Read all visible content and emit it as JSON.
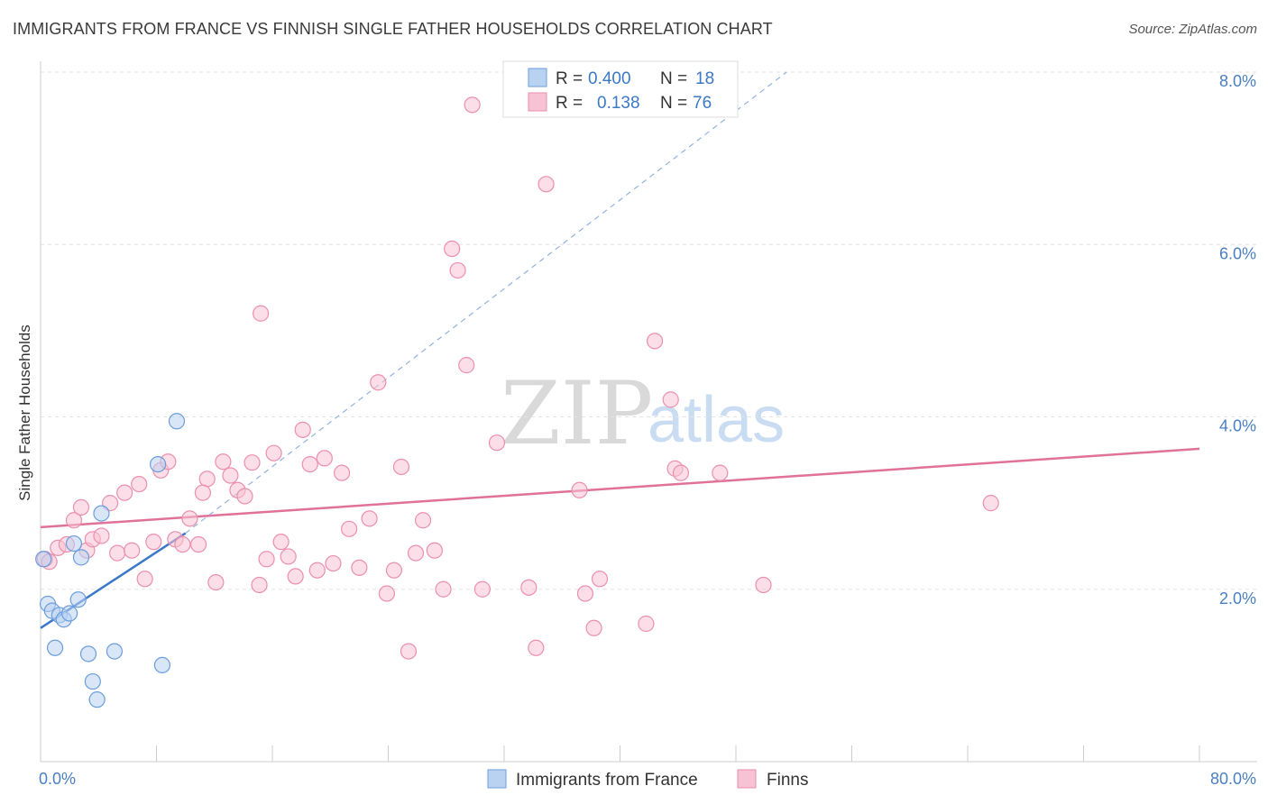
{
  "header": {
    "title": "IMMIGRANTS FROM FRANCE VS FINNISH SINGLE FATHER HOUSEHOLDS CORRELATION CHART",
    "source": "Source: ZipAtlas.com"
  },
  "watermark": {
    "zip": "ZIP",
    "atlas": "atlas"
  },
  "legend": {
    "rows": [
      {
        "r_label": "R =",
        "r_value": "0.400",
        "n_label": "N =",
        "n_value": "18",
        "color": "#a9c8f0"
      },
      {
        "r_label": "R =",
        "r_value": "0.138",
        "n_label": "N =",
        "n_value": "76",
        "color": "#f7b8cc"
      }
    ]
  },
  "chart_data": {
    "type": "scatter",
    "title": "IMMIGRANTS FROM FRANCE VS FINNISH SINGLE FATHER HOUSEHOLDS CORRELATION CHART",
    "xlabel": "",
    "ylabel": "Single Father Households",
    "xlim": [
      0,
      80
    ],
    "ylim": [
      0,
      8.0
    ],
    "x_tick_labels": [
      "0.0%",
      "80.0%"
    ],
    "y_ticks": [
      2.0,
      4.0,
      6.0,
      8.0
    ],
    "y_tick_labels": [
      "2.0%",
      "4.0%",
      "6.0%",
      "8.0%"
    ],
    "grid": true,
    "series": [
      {
        "name": "Immigrants from France",
        "color": "#6b9edb",
        "fill": "#b9d2f2",
        "trend": {
          "x": [
            0,
            10
          ],
          "y": [
            1.55,
            2.65
          ],
          "color": "#3a78c8",
          "extended_dashed_to": [
            51.5,
            8.0
          ]
        },
        "points": [
          [
            0.2,
            2.35
          ],
          [
            0.5,
            1.83
          ],
          [
            0.8,
            1.75
          ],
          [
            1.0,
            1.32
          ],
          [
            1.3,
            1.7
          ],
          [
            1.6,
            1.65
          ],
          [
            2.0,
            1.72
          ],
          [
            2.3,
            2.53
          ],
          [
            2.6,
            1.88
          ],
          [
            2.8,
            2.37
          ],
          [
            3.3,
            1.25
          ],
          [
            3.6,
            0.93
          ],
          [
            3.9,
            0.72
          ],
          [
            4.2,
            2.88
          ],
          [
            5.1,
            1.28
          ],
          [
            8.1,
            3.45
          ],
          [
            8.4,
            1.12
          ],
          [
            9.4,
            3.95
          ]
        ]
      },
      {
        "name": "Finns",
        "color": "#eb8fae",
        "fill": "#f7c3d4",
        "trend": {
          "x": [
            0,
            80
          ],
          "y": [
            2.72,
            3.63
          ],
          "color": "#e0729a"
        },
        "points": [
          [
            0.3,
            2.35
          ],
          [
            0.6,
            2.32
          ],
          [
            1.2,
            2.48
          ],
          [
            1.8,
            2.52
          ],
          [
            2.3,
            2.8
          ],
          [
            2.8,
            2.95
          ],
          [
            3.2,
            2.45
          ],
          [
            3.6,
            2.58
          ],
          [
            4.2,
            2.62
          ],
          [
            4.8,
            3.0
          ],
          [
            5.3,
            2.42
          ],
          [
            5.8,
            3.12
          ],
          [
            6.3,
            2.45
          ],
          [
            6.8,
            3.22
          ],
          [
            7.2,
            2.12
          ],
          [
            7.8,
            2.55
          ],
          [
            8.3,
            3.38
          ],
          [
            8.8,
            3.48
          ],
          [
            9.3,
            2.58
          ],
          [
            9.8,
            2.52
          ],
          [
            10.3,
            2.82
          ],
          [
            10.9,
            2.52
          ],
          [
            11.5,
            3.28
          ],
          [
            12.1,
            2.08
          ],
          [
            12.6,
            3.48
          ],
          [
            13.1,
            3.32
          ],
          [
            13.6,
            3.15
          ],
          [
            14.1,
            3.08
          ],
          [
            14.6,
            3.47
          ],
          [
            15.1,
            2.05
          ],
          [
            15.6,
            2.35
          ],
          [
            16.1,
            3.58
          ],
          [
            16.6,
            2.55
          ],
          [
            17.1,
            2.38
          ],
          [
            17.6,
            2.15
          ],
          [
            18.1,
            3.85
          ],
          [
            18.6,
            3.45
          ],
          [
            19.1,
            2.22
          ],
          [
            19.6,
            3.52
          ],
          [
            20.2,
            2.3
          ],
          [
            20.8,
            3.35
          ],
          [
            21.3,
            2.7
          ],
          [
            22.0,
            2.25
          ],
          [
            22.7,
            2.82
          ],
          [
            23.3,
            4.4
          ],
          [
            23.9,
            1.95
          ],
          [
            24.4,
            2.22
          ],
          [
            24.9,
            3.42
          ],
          [
            25.4,
            1.28
          ],
          [
            25.9,
            2.42
          ],
          [
            26.4,
            2.8
          ],
          [
            27.2,
            2.45
          ],
          [
            27.8,
            2.0
          ],
          [
            28.4,
            5.95
          ],
          [
            28.8,
            5.7
          ],
          [
            29.4,
            4.6
          ],
          [
            29.8,
            7.62
          ],
          [
            30.5,
            2.0
          ],
          [
            31.5,
            3.7
          ],
          [
            33.7,
            2.02
          ],
          [
            34.2,
            1.32
          ],
          [
            34.9,
            6.7
          ],
          [
            37.2,
            3.15
          ],
          [
            37.6,
            1.95
          ],
          [
            38.2,
            1.55
          ],
          [
            38.6,
            2.12
          ],
          [
            41.8,
            1.6
          ],
          [
            42.4,
            4.88
          ],
          [
            43.5,
            4.2
          ],
          [
            43.8,
            3.4
          ],
          [
            44.2,
            3.35
          ],
          [
            46.9,
            3.35
          ],
          [
            49.9,
            2.05
          ],
          [
            65.6,
            3.0
          ],
          [
            15.2,
            5.2
          ],
          [
            11.2,
            3.12
          ]
        ]
      }
    ],
    "legend_placement": "top-center"
  }
}
